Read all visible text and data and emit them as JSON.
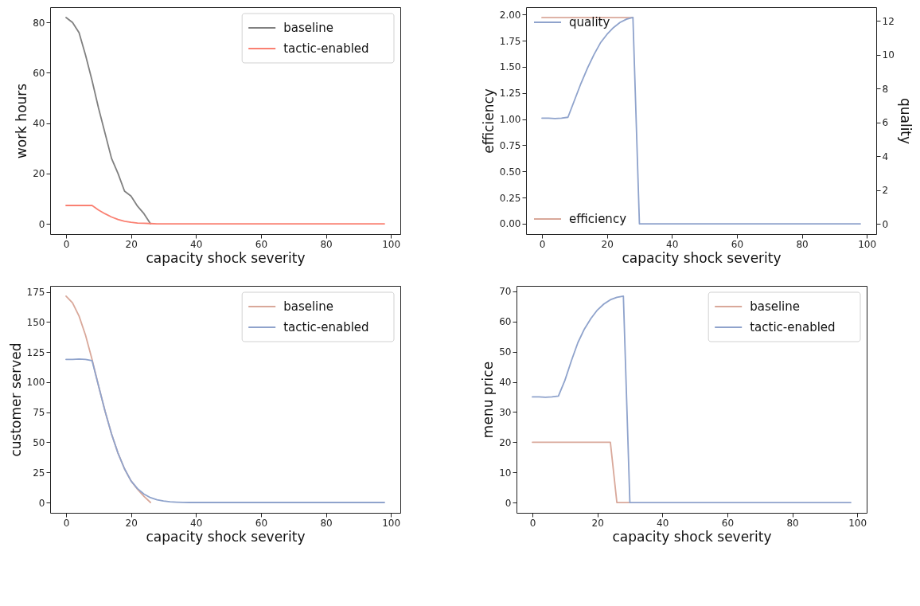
{
  "chart_data": [
    {
      "type": "line",
      "xlabel": "capacity shock severity",
      "ylabel": "work hours",
      "xlim": [
        -4.9,
        102.9
      ],
      "xticks": [
        0,
        20,
        40,
        60,
        80,
        100
      ],
      "ylim": [
        -4.1,
        86.1
      ],
      "yticks": [
        0,
        20,
        40,
        60,
        80
      ],
      "grid": false,
      "legend": "top right",
      "series": [
        {
          "name": "baseline",
          "color": "#808080",
          "x": [
            0,
            2,
            4,
            6,
            8,
            10,
            12,
            14,
            16,
            18,
            20,
            22,
            24,
            26
          ],
          "values": [
            82,
            80,
            76,
            67,
            57,
            46,
            36,
            26,
            20,
            13,
            11,
            7,
            4,
            0
          ]
        },
        {
          "name": "tactic-enabled",
          "color": "#fa8072",
          "x": [
            0,
            2,
            4,
            6,
            8,
            10,
            12,
            14,
            16,
            18,
            20,
            22,
            24,
            26,
            28,
            98
          ],
          "values": [
            7.3,
            7.3,
            7.3,
            7.3,
            7.3,
            5.5,
            4,
            2.7,
            1.7,
            1,
            0.6,
            0.3,
            0.2,
            0.1,
            0,
            0
          ]
        }
      ]
    },
    {
      "type": "line",
      "xlabel": "capacity shock severity",
      "ylabel": "efficiency",
      "y2label": "quality",
      "xlim": [
        -4.9,
        102.9
      ],
      "xticks": [
        0,
        20,
        40,
        60,
        80,
        100
      ],
      "ylim": [
        -0.1,
        2.07
      ],
      "yticks": [
        {
          "value": 0,
          "label": "0.00"
        },
        {
          "value": 0.25,
          "label": "0.25"
        },
        {
          "value": 0.5,
          "label": "0.50"
        },
        {
          "value": 0.75,
          "label": "0.75"
        },
        {
          "value": 1,
          "label": "1.00"
        },
        {
          "value": 1.25,
          "label": "1.25"
        },
        {
          "value": 1.5,
          "label": "1.50"
        },
        {
          "value": 1.75,
          "label": "1.75"
        },
        {
          "value": 2,
          "label": "2.00"
        }
      ],
      "y2lim": [
        -0.61,
        12.81
      ],
      "y2ticks": [
        0,
        2,
        4,
        6,
        8,
        10,
        12
      ],
      "grid": false,
      "legend": "left",
      "series": [
        {
          "name": "efficiency",
          "color": "#d9a89a",
          "x": [
            0,
            28
          ],
          "values": [
            1.97,
            1.97
          ]
        },
        {
          "name": "quality",
          "color": "#8fa3cc",
          "axis": "y2",
          "x": [
            0,
            2,
            4,
            6,
            8,
            10,
            12,
            14,
            16,
            18,
            20,
            22,
            24,
            26,
            28,
            30,
            98
          ],
          "values": [
            6.25,
            6.25,
            6.22,
            6.25,
            6.3,
            7.3,
            8.3,
            9.2,
            10,
            10.7,
            11.2,
            11.6,
            11.9,
            12.1,
            12.2,
            0,
            0
          ]
        }
      ]
    },
    {
      "type": "line",
      "xlabel": "capacity shock severity",
      "ylabel": "customer served",
      "xlim": [
        -4.9,
        102.9
      ],
      "xticks": [
        0,
        20,
        40,
        60,
        80,
        100
      ],
      "ylim": [
        -8.6,
        180.1
      ],
      "yticks": [
        0,
        25,
        50,
        75,
        100,
        125,
        150,
        175
      ],
      "grid": false,
      "legend": "top right",
      "series": [
        {
          "name": "baseline",
          "color": "#d9a89a",
          "x": [
            0,
            2,
            4,
            6,
            8,
            10,
            12,
            14,
            16,
            18,
            20,
            22,
            24,
            26
          ],
          "values": [
            171.5,
            166,
            155,
            139,
            119,
            97,
            76,
            57,
            41,
            28,
            18,
            11,
            5,
            0
          ]
        },
        {
          "name": "tactic-enabled",
          "color": "#8fa3cc",
          "x": [
            0,
            2,
            4,
            6,
            8,
            10,
            12,
            14,
            16,
            18,
            20,
            22,
            24,
            26,
            28,
            30,
            32,
            34,
            36,
            38,
            98
          ],
          "values": [
            119,
            119,
            119.3,
            119,
            118,
            97,
            76,
            57,
            41,
            28,
            18,
            11.5,
            7,
            4,
            2.3,
            1.2,
            0.6,
            0.3,
            0.1,
            0,
            0
          ]
        }
      ]
    },
    {
      "type": "line",
      "xlabel": "capacity shock severity",
      "ylabel": "menu price",
      "xlim": [
        -4.9,
        102.9
      ],
      "xticks": [
        0,
        20,
        40,
        60,
        80,
        100
      ],
      "ylim": [
        -3.4,
        71.8
      ],
      "yticks": [
        0,
        10,
        20,
        30,
        40,
        50,
        60,
        70
      ],
      "grid": false,
      "legend": "top right",
      "series": [
        {
          "name": "baseline",
          "color": "#d9a89a",
          "x": [
            0,
            24,
            26,
            30
          ],
          "values": [
            20,
            20,
            0,
            0
          ]
        },
        {
          "name": "tactic-enabled",
          "color": "#8fa3cc",
          "x": [
            0,
            2,
            4,
            6,
            8,
            10,
            12,
            14,
            16,
            18,
            20,
            22,
            24,
            26,
            28,
            30,
            98
          ],
          "values": [
            35,
            35,
            34.9,
            35,
            35.3,
            40.5,
            47,
            53,
            57.5,
            61,
            63.8,
            65.8,
            67.2,
            68,
            68.4,
            0,
            0
          ]
        }
      ]
    }
  ]
}
